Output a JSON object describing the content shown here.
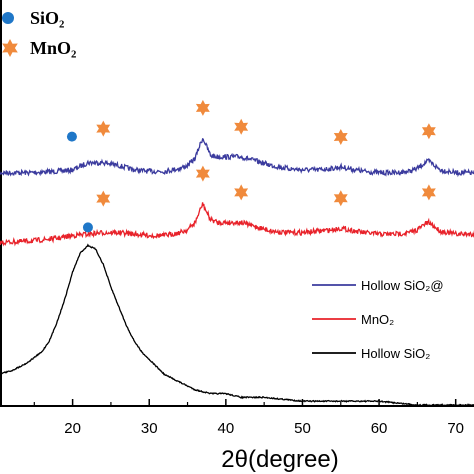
{
  "chart_data": {
    "type": "line",
    "xlabel": "2θ(degree)",
    "ylabel": "",
    "xlim": [
      10,
      75
    ],
    "x_ticks": [
      "20",
      "30",
      "40",
      "50",
      "60",
      "70"
    ],
    "y_ticks": false,
    "grid": false,
    "legend_position": "right",
    "series": [
      {
        "name": "Hollow SiO₂@",
        "color": "#3b3b9e",
        "x": [
          10,
          14,
          18,
          20,
          22,
          24,
          26,
          28,
          30,
          32,
          34,
          35,
          36,
          36.6,
          37,
          37.5,
          38,
          39,
          40,
          42,
          44,
          46,
          48,
          50,
          52,
          54,
          55,
          56,
          58,
          60,
          62,
          64,
          65,
          66,
          66.5,
          67,
          68,
          70,
          72,
          75
        ],
        "y": [
          0.55,
          0.55,
          0.56,
          0.57,
          0.62,
          0.62,
          0.6,
          0.57,
          0.56,
          0.56,
          0.58,
          0.6,
          0.65,
          0.74,
          0.79,
          0.73,
          0.67,
          0.66,
          0.66,
          0.66,
          0.63,
          0.6,
          0.58,
          0.57,
          0.57,
          0.58,
          0.59,
          0.58,
          0.56,
          0.55,
          0.55,
          0.56,
          0.58,
          0.62,
          0.63,
          0.61,
          0.57,
          0.55,
          0.55,
          0.55
        ]
      },
      {
        "name": "MnO₂",
        "color": "#e8222a",
        "x": [
          10,
          14,
          18,
          20,
          22,
          24,
          26,
          28,
          30,
          32,
          34,
          35,
          36,
          36.6,
          37,
          37.5,
          38,
          39,
          40,
          42,
          44,
          46,
          48,
          50,
          52,
          54,
          55,
          56,
          58,
          60,
          62,
          64,
          65,
          66,
          66.5,
          67,
          68,
          70,
          72,
          75
        ],
        "y": [
          0.0,
          0.01,
          0.03,
          0.05,
          0.06,
          0.07,
          0.07,
          0.06,
          0.05,
          0.05,
          0.07,
          0.09,
          0.14,
          0.22,
          0.27,
          0.21,
          0.16,
          0.14,
          0.14,
          0.14,
          0.11,
          0.08,
          0.07,
          0.07,
          0.08,
          0.09,
          0.1,
          0.09,
          0.07,
          0.06,
          0.06,
          0.07,
          0.09,
          0.13,
          0.14,
          0.12,
          0.08,
          0.06,
          0.06,
          0.06
        ]
      },
      {
        "name": "Hollow SiO₂",
        "color": "#000000",
        "x": [
          10,
          12,
          14,
          16,
          17,
          18,
          19,
          20,
          21,
          22,
          23,
          24,
          25,
          26,
          27,
          28,
          29,
          30,
          31,
          32,
          33,
          34,
          35,
          36,
          38,
          40,
          42,
          45,
          50,
          55,
          60,
          65,
          70,
          75
        ],
        "y": [
          -0.5,
          -0.49,
          -0.47,
          -0.44,
          -0.41,
          -0.36,
          -0.3,
          -0.23,
          -0.18,
          -0.16,
          -0.17,
          -0.21,
          -0.27,
          -0.32,
          -0.37,
          -0.41,
          -0.44,
          -0.46,
          -0.48,
          -0.5,
          -0.51,
          -0.52,
          -0.53,
          -0.54,
          -0.55,
          -0.55,
          -0.56,
          -0.56,
          -0.57,
          -0.57,
          -0.57,
          -0.58,
          -0.58,
          -0.58
        ]
      }
    ],
    "marker_legend": [
      {
        "label": "SiO₂",
        "symbol": "circle",
        "color": "#1f77c8"
      },
      {
        "label": "MnO₂",
        "symbol": "star",
        "color": "#f08a3c"
      }
    ],
    "peak_markers": [
      {
        "series": "Hollow SiO₂@",
        "type": "circle",
        "x": 22
      },
      {
        "series": "Hollow SiO₂@",
        "type": "star",
        "x": 24
      },
      {
        "series": "Hollow SiO₂@",
        "type": "star",
        "x": 37
      },
      {
        "series": "Hollow SiO₂@",
        "type": "star",
        "x": 42
      },
      {
        "series": "Hollow SiO₂@",
        "type": "star",
        "x": 55
      },
      {
        "series": "Hollow SiO₂@",
        "type": "star",
        "x": 66.5
      },
      {
        "series": "MnO₂",
        "type": "star",
        "x": 24
      },
      {
        "series": "MnO₂",
        "type": "star",
        "x": 37
      },
      {
        "series": "MnO₂",
        "type": "star",
        "x": 42
      },
      {
        "series": "MnO₂",
        "type": "star",
        "x": 55
      },
      {
        "series": "MnO₂",
        "type": "star",
        "x": 66.5
      },
      {
        "series": "Hollow SiO₂",
        "type": "circle",
        "x": 22
      }
    ]
  }
}
